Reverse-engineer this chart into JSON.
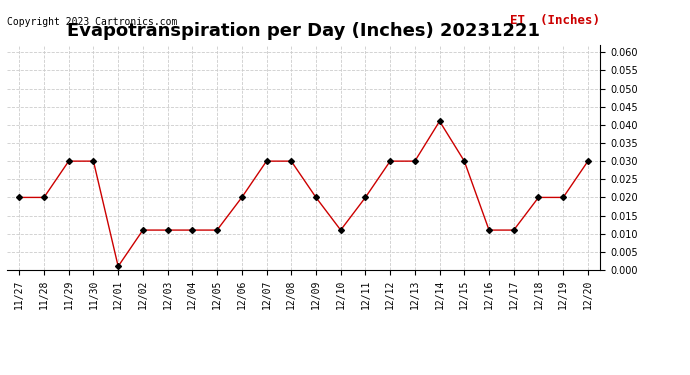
{
  "title": "Evapotranspiration per Day (Inches) 20231221",
  "copyright_text": "Copyright 2023 Cartronics.com",
  "legend_label": "ET  (Inches)",
  "dates": [
    "11/27",
    "11/28",
    "11/29",
    "11/30",
    "12/01",
    "12/02",
    "12/03",
    "12/04",
    "12/05",
    "12/06",
    "12/07",
    "12/08",
    "12/09",
    "12/10",
    "12/11",
    "12/12",
    "12/13",
    "12/14",
    "12/15",
    "12/16",
    "12/17",
    "12/18",
    "12/19",
    "12/20"
  ],
  "values": [
    0.02,
    0.02,
    0.03,
    0.03,
    0.001,
    0.011,
    0.011,
    0.011,
    0.011,
    0.02,
    0.03,
    0.03,
    0.02,
    0.011,
    0.02,
    0.03,
    0.03,
    0.041,
    0.03,
    0.011,
    0.011,
    0.02,
    0.02,
    0.03
  ],
  "line_color": "#cc0000",
  "marker_color": "#000000",
  "background_color": "#ffffff",
  "grid_color": "#cccccc",
  "title_fontsize": 13,
  "copyright_fontsize": 7,
  "legend_fontsize": 9,
  "tick_fontsize": 7,
  "ylim": [
    0.0,
    0.062
  ],
  "yticks": [
    0.0,
    0.005,
    0.01,
    0.015,
    0.02,
    0.025,
    0.03,
    0.035,
    0.04,
    0.045,
    0.05,
    0.055,
    0.06
  ]
}
